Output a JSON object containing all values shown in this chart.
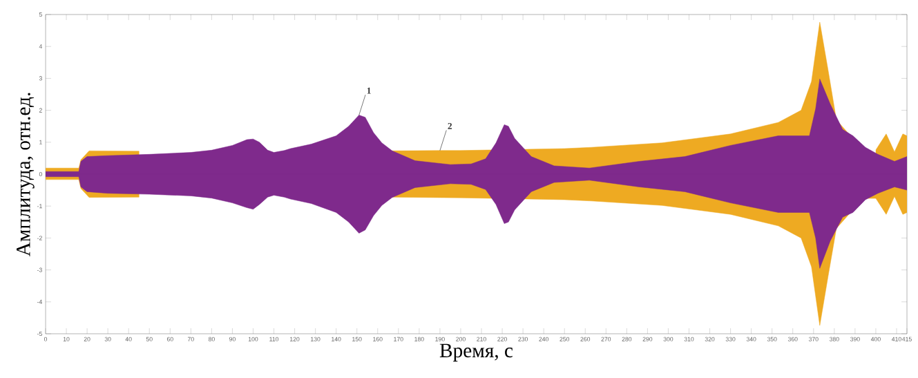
{
  "chart_data": {
    "type": "area",
    "xlabel": "Время, с",
    "ylabel": "Амплитуда, отн.ед.",
    "xlim": [
      0,
      415
    ],
    "ylim": [
      -5,
      5
    ],
    "xticks": [
      0,
      10,
      20,
      30,
      40,
      50,
      60,
      70,
      80,
      90,
      100,
      110,
      120,
      130,
      140,
      150,
      160,
      170,
      180,
      190,
      200,
      210,
      220,
      230,
      240,
      250,
      260,
      270,
      280,
      290,
      300,
      310,
      320,
      330,
      340,
      350,
      360,
      370,
      380,
      390,
      400,
      410,
      415
    ],
    "yticks": [
      -5,
      -4,
      -3,
      -2,
      -1,
      0,
      1,
      2,
      3,
      4,
      5
    ],
    "series": [
      {
        "color": "#eeaa22",
        "x": [
          0,
          16,
          17,
          21,
          45,
          50,
          160,
          166,
          190,
          200,
          250,
          263,
          297,
          330,
          353,
          364,
          369,
          373,
          377,
          381,
          387,
          394,
          400,
          405,
          409,
          413,
          415
        ],
        "values": [
          0.19,
          0.19,
          0.45,
          0.73,
          0.72,
          null,
          null,
          0.73,
          0.74,
          0.74,
          0.8,
          0.84,
          0.98,
          1.26,
          1.62,
          2.0,
          2.9,
          4.76,
          3.26,
          1.7,
          1.26,
          null,
          0.76,
          1.26,
          0.7,
          1.26,
          1.2
        ]
      },
      {
        "color": "#eeaa22",
        "x": [
          0,
          16,
          17,
          21,
          45,
          50,
          160,
          166,
          200,
          250,
          263,
          297,
          330,
          353,
          364,
          369,
          373,
          377,
          381,
          387,
          394,
          400,
          405,
          409,
          413,
          415
        ],
        "values": [
          -0.17,
          -0.17,
          -0.45,
          -0.73,
          -0.72,
          null,
          null,
          -0.72,
          -0.74,
          -0.8,
          -0.84,
          -0.98,
          -1.26,
          -1.62,
          -2.0,
          -2.9,
          -4.74,
          -3.2,
          -1.7,
          -1.26,
          -0.76,
          -0.76,
          -1.26,
          -0.7,
          -1.26,
          -1.2
        ]
      },
      {
        "color": "#7f2a8c",
        "x": [
          0,
          16,
          17,
          20,
          30,
          50,
          70,
          80,
          90,
          97,
          100,
          103,
          107,
          110,
          115,
          118,
          128,
          140,
          146,
          151,
          154,
          158,
          162,
          167,
          178,
          195,
          205,
          212,
          217,
          221,
          223,
          226,
          234,
          245,
          262,
          286,
          308,
          330,
          353,
          368,
          371,
          373,
          378,
          384,
          389,
          395,
          401,
          409,
          415
        ],
        "values": [
          0.08,
          0.08,
          0.4,
          0.55,
          0.58,
          0.62,
          0.68,
          0.75,
          0.9,
          1.08,
          1.1,
          1.0,
          0.75,
          0.68,
          0.74,
          0.8,
          0.94,
          1.2,
          1.5,
          1.85,
          1.78,
          1.3,
          0.98,
          0.73,
          0.42,
          0.3,
          0.32,
          0.48,
          0.98,
          1.55,
          1.5,
          1.12,
          0.55,
          0.26,
          0.19,
          0.4,
          0.55,
          0.9,
          1.2,
          1.2,
          2.05,
          2.98,
          2.2,
          1.4,
          1.2,
          0.84,
          0.62,
          0.4,
          0.55
        ]
      },
      {
        "color": "#7f2a8c",
        "x": [
          0,
          16,
          17,
          20,
          30,
          50,
          70,
          80,
          90,
          97,
          100,
          103,
          107,
          110,
          115,
          118,
          128,
          140,
          146,
          151,
          154,
          158,
          162,
          167,
          178,
          195,
          205,
          212,
          217,
          221,
          223,
          226,
          234,
          245,
          262,
          286,
          308,
          330,
          353,
          368,
          371,
          373,
          378,
          384,
          389,
          395,
          401,
          409,
          415
        ],
        "values": [
          -0.08,
          -0.08,
          -0.4,
          -0.55,
          -0.6,
          -0.63,
          -0.68,
          -0.75,
          -0.9,
          -1.05,
          -1.1,
          -0.95,
          -0.72,
          -0.66,
          -0.72,
          -0.78,
          -0.92,
          -1.2,
          -1.5,
          -1.85,
          -1.75,
          -1.3,
          -0.98,
          -0.73,
          -0.42,
          -0.3,
          -0.32,
          -0.48,
          -0.95,
          -1.55,
          -1.5,
          -1.12,
          -0.55,
          -0.26,
          -0.19,
          -0.4,
          -0.55,
          -0.9,
          -1.2,
          -1.2,
          -2.0,
          -2.95,
          -2.1,
          -1.35,
          -1.2,
          -0.8,
          -0.6,
          -0.4,
          -0.5
        ]
      }
    ],
    "annotations": [
      {
        "text": "1",
        "x": 151,
        "y": 1.85
      },
      {
        "text": "2",
        "x": 190,
        "y": 0.74
      }
    ]
  }
}
